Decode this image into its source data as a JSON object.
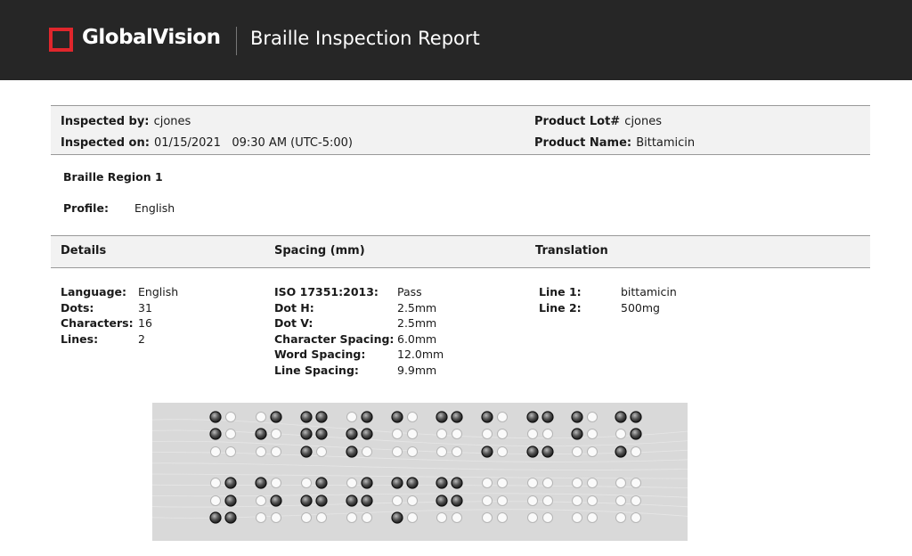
{
  "header": {
    "brand": "GlobalVision",
    "title": "Braille Inspection Report"
  },
  "inspection": {
    "inspected_by": {
      "label": "Inspected by:",
      "value": "cjones"
    },
    "inspected_on": {
      "label": "Inspected on:",
      "value": "01/15/2021   09:30 AM (UTC-5:00)"
    },
    "product_lot": {
      "label": "Product Lot#",
      "value": "cjones"
    },
    "product_name": {
      "label": "Product Name:",
      "value": "Bittamicin"
    }
  },
  "region": {
    "title": "Braille Region 1",
    "profile": {
      "label": "Profile:",
      "value": "English"
    }
  },
  "sections": [
    {
      "heading": "Details",
      "rows": [
        [
          "Language:",
          "English"
        ],
        [
          "Dots:",
          "31"
        ],
        [
          "Characters:",
          "16"
        ],
        [
          "Lines:",
          "2"
        ]
      ]
    },
    {
      "heading": "Spacing (mm)",
      "rows": [
        [
          "ISO 17351:2013:",
          "Pass"
        ],
        [
          "Dot H:",
          "2.5mm"
        ],
        [
          "Dot V:",
          "2.5mm"
        ],
        [
          "Character Spacing:",
          "6.0mm"
        ],
        [
          "Word Spacing:",
          "12.0mm"
        ],
        [
          "Line Spacing:",
          "9.9mm"
        ]
      ]
    },
    {
      "heading": "Translation",
      "rows": [
        [
          "Line 1:",
          "bittamicin"
        ],
        [
          "Line 2:",
          "500mg"
        ]
      ]
    }
  ]
}
